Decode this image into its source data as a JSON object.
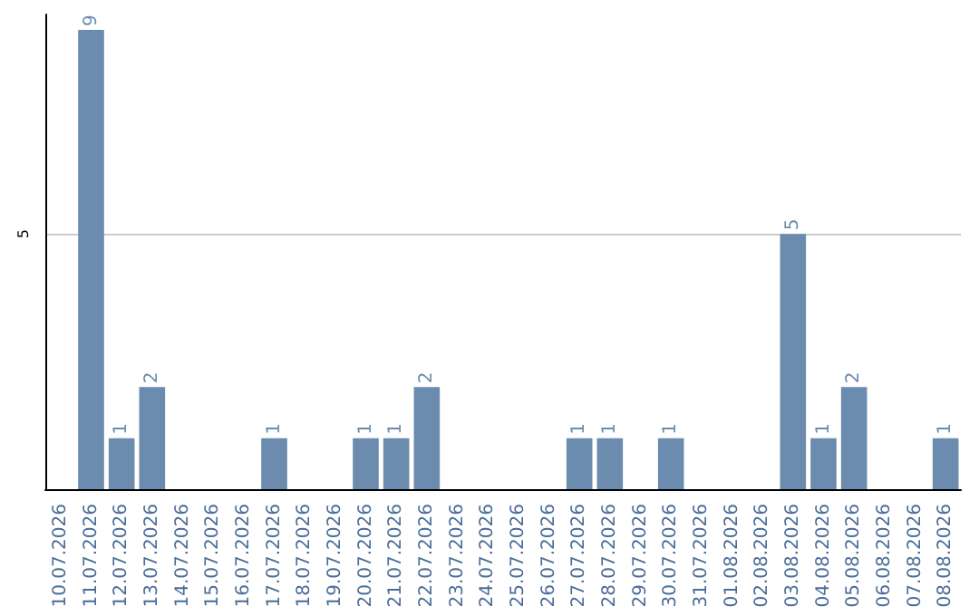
{
  "chart_data": {
    "type": "bar",
    "categories": [
      "10.07.2026",
      "11.07.2026",
      "12.07.2026",
      "13.07.2026",
      "14.07.2026",
      "15.07.2026",
      "16.07.2026",
      "17.07.2026",
      "18.07.2026",
      "19.07.2026",
      "20.07.2026",
      "21.07.2026",
      "22.07.2026",
      "23.07.2026",
      "24.07.2026",
      "25.07.2026",
      "26.07.2026",
      "27.07.2026",
      "28.07.2026",
      "29.07.2026",
      "30.07.2026",
      "31.07.2026",
      "01.08.2026",
      "02.08.2026",
      "03.08.2026",
      "04.08.2026",
      "05.08.2026",
      "06.08.2026",
      "07.08.2026",
      "08.08.2026"
    ],
    "values": [
      null,
      9,
      1,
      2,
      null,
      null,
      null,
      1,
      null,
      null,
      1,
      1,
      2,
      null,
      null,
      null,
      null,
      1,
      1,
      null,
      1,
      null,
      null,
      null,
      5,
      1,
      2,
      null,
      null,
      1
    ],
    "color": "#6b8cae",
    "ylim": [
      0,
      9.3
    ],
    "yticks": [
      5
    ],
    "grid": "y",
    "data_labels": true
  }
}
